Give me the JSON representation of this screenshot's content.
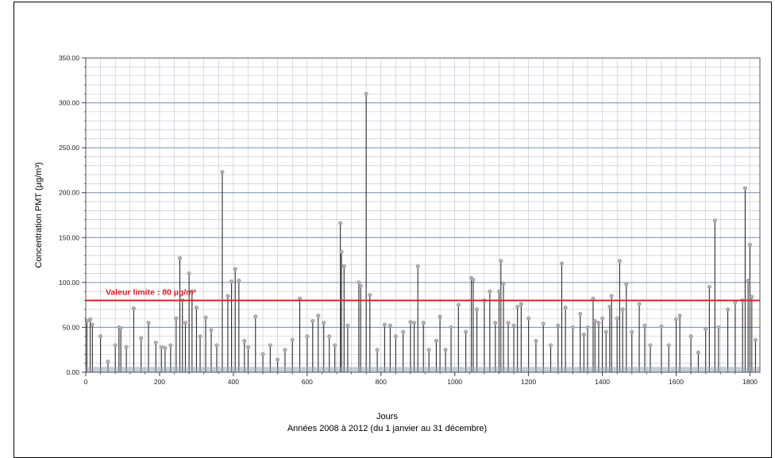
{
  "chart_data": {
    "type": "line",
    "xlabel": "Jours",
    "subtitle": "Années 2008 à 2012 (du 1 janvier au 31 décembre)",
    "ylabel": "Concentration PMT (µg/m³)",
    "xlim": [
      0,
      1827
    ],
    "ylim": [
      0,
      350
    ],
    "x_ticks": [
      0,
      200,
      400,
      600,
      800,
      1000,
      1200,
      1400,
      1600,
      1800
    ],
    "y_ticks": [
      {
        "value": 0,
        "label": "0.00"
      },
      {
        "value": 50,
        "label": "50.00"
      },
      {
        "value": 100,
        "label": "100.00"
      },
      {
        "value": 150,
        "label": "150.00"
      },
      {
        "value": 200,
        "label": "200.00"
      },
      {
        "value": 250,
        "label": "250.00"
      },
      {
        "value": 300,
        "label": "300.00"
      },
      {
        "value": 350,
        "label": "350.00"
      }
    ],
    "grid": true,
    "limit": {
      "value": 80,
      "label": "Valeur limite : 80 µg/m³",
      "color": "#e0202a"
    },
    "colors": {
      "series": "#2b2b2b",
      "marker": "#b0b0b0",
      "grid": "#b8c4d4",
      "major_grid": "#7b8fb2"
    },
    "series": [
      {
        "points": [
          [
            3,
            57
          ],
          [
            12,
            59
          ],
          [
            18,
            53
          ],
          [
            40,
            40
          ],
          [
            60,
            12
          ],
          [
            80,
            30
          ],
          [
            90,
            50
          ],
          [
            95,
            49
          ],
          [
            110,
            28
          ],
          [
            130,
            71
          ],
          [
            150,
            38
          ],
          [
            170,
            55
          ],
          [
            190,
            33
          ],
          [
            205,
            28
          ],
          [
            215,
            27
          ],
          [
            230,
            30
          ],
          [
            245,
            60
          ],
          [
            255,
            127
          ],
          [
            262,
            80
          ],
          [
            270,
            55
          ],
          [
            280,
            110
          ],
          [
            288,
            90
          ],
          [
            300,
            72
          ],
          [
            310,
            40
          ],
          [
            325,
            61
          ],
          [
            340,
            47
          ],
          [
            355,
            30
          ],
          [
            370,
            223
          ],
          [
            385,
            85
          ],
          [
            395,
            101
          ],
          [
            405,
            115
          ],
          [
            415,
            102
          ],
          [
            430,
            35
          ],
          [
            440,
            28
          ],
          [
            460,
            62
          ],
          [
            480,
            20
          ],
          [
            500,
            30
          ],
          [
            520,
            14
          ],
          [
            540,
            25
          ],
          [
            560,
            36
          ],
          [
            580,
            82
          ],
          [
            600,
            40
          ],
          [
            615,
            57
          ],
          [
            630,
            63
          ],
          [
            645,
            55
          ],
          [
            660,
            40
          ],
          [
            675,
            30
          ],
          [
            690,
            166
          ],
          [
            693,
            134
          ],
          [
            700,
            118
          ],
          [
            710,
            52
          ],
          [
            740,
            100
          ],
          [
            745,
            96
          ],
          [
            760,
            310
          ],
          [
            770,
            86
          ],
          [
            790,
            25
          ],
          [
            810,
            53
          ],
          [
            825,
            52
          ],
          [
            840,
            40
          ],
          [
            860,
            45
          ],
          [
            880,
            56
          ],
          [
            890,
            55
          ],
          [
            900,
            118
          ],
          [
            915,
            55
          ],
          [
            930,
            25
          ],
          [
            950,
            35
          ],
          [
            960,
            62
          ],
          [
            975,
            25
          ],
          [
            990,
            50
          ],
          [
            1010,
            75
          ],
          [
            1030,
            45
          ],
          [
            1045,
            105
          ],
          [
            1050,
            103
          ],
          [
            1060,
            70
          ],
          [
            1080,
            80
          ],
          [
            1095,
            90
          ],
          [
            1110,
            55
          ],
          [
            1120,
            90
          ],
          [
            1125,
            124
          ],
          [
            1132,
            99
          ],
          [
            1145,
            55
          ],
          [
            1160,
            52
          ],
          [
            1170,
            73
          ],
          [
            1180,
            76
          ],
          [
            1200,
            60
          ],
          [
            1220,
            35
          ],
          [
            1240,
            54
          ],
          [
            1260,
            30
          ],
          [
            1280,
            52
          ],
          [
            1290,
            121
          ],
          [
            1300,
            72
          ],
          [
            1320,
            50
          ],
          [
            1340,
            65
          ],
          [
            1350,
            42
          ],
          [
            1360,
            50
          ],
          [
            1375,
            82
          ],
          [
            1380,
            57
          ],
          [
            1390,
            55
          ],
          [
            1400,
            60
          ],
          [
            1410,
            45
          ],
          [
            1420,
            73
          ],
          [
            1425,
            85
          ],
          [
            1440,
            60
          ],
          [
            1447,
            124
          ],
          [
            1455,
            70
          ],
          [
            1465,
            98
          ],
          [
            1480,
            45
          ],
          [
            1500,
            76
          ],
          [
            1515,
            52
          ],
          [
            1530,
            30
          ],
          [
            1560,
            51
          ],
          [
            1580,
            30
          ],
          [
            1600,
            59
          ],
          [
            1610,
            63
          ],
          [
            1640,
            40
          ],
          [
            1660,
            22
          ],
          [
            1680,
            48
          ],
          [
            1690,
            95
          ],
          [
            1705,
            169
          ],
          [
            1715,
            50
          ],
          [
            1740,
            70
          ],
          [
            1760,
            78
          ],
          [
            1780,
            80
          ],
          [
            1787,
            205
          ],
          [
            1795,
            102
          ],
          [
            1800,
            142
          ],
          [
            1805,
            84
          ],
          [
            1815,
            36
          ]
        ]
      }
    ]
  }
}
